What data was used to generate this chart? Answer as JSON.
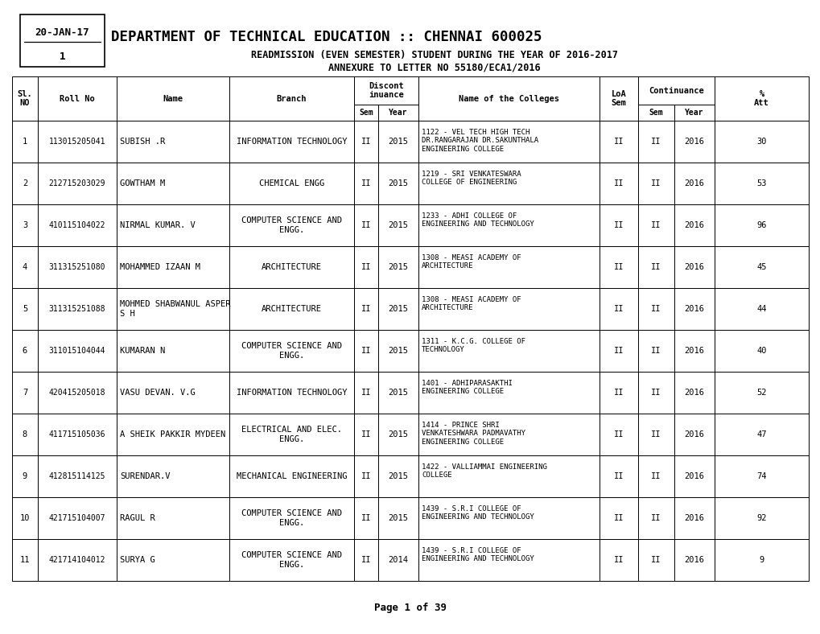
{
  "date": "20-JAN-17",
  "page_num": "1",
  "title1": "DEPARTMENT OF TECHNICAL EDUCATION :: CHENNAI 600025",
  "title2": "READMISSION (EVEN SEMESTER) STUDENT DURING THE YEAR OF 2016-2017",
  "title3": "ANNEXURE TO LETTER NO 55180/ECA1/2016",
  "footer": "Page 1 of 39",
  "rows": [
    {
      "sl": "1",
      "roll": "113015205041",
      "name": "SUBISH .R",
      "branch": "INFORMATION TECHNOLOGY",
      "d_sem": "II",
      "d_year": "2015",
      "college": "1122 - VEL TECH HIGH TECH\nDR.RANGARAJAN DR.SAKUNTHALA\nENGINEERING COLLEGE",
      "loa_sem": "II",
      "c_sem": "II",
      "c_year": "2016",
      "att": "30"
    },
    {
      "sl": "2",
      "roll": "212715203029",
      "name": "GOWTHAM M",
      "branch": "CHEMICAL ENGG",
      "d_sem": "II",
      "d_year": "2015",
      "college": "1219 - SRI VENKATESWARA\nCOLLEGE OF ENGINEERING",
      "loa_sem": "II",
      "c_sem": "II",
      "c_year": "2016",
      "att": "53"
    },
    {
      "sl": "3",
      "roll": "410115104022",
      "name": "NIRMAL KUMAR. V",
      "branch": "COMPUTER SCIENCE AND\nENGG.",
      "d_sem": "II",
      "d_year": "2015",
      "college": "1233 - ADHI COLLEGE OF\nENGINEERING AND TECHNOLOGY",
      "loa_sem": "II",
      "c_sem": "II",
      "c_year": "2016",
      "att": "96"
    },
    {
      "sl": "4",
      "roll": "311315251080",
      "name": "MOHAMMED IZAAN M",
      "branch": "ARCHITECTURE",
      "d_sem": "II",
      "d_year": "2015",
      "college": "1308 - MEASI ACADEMY OF\nARCHITECTURE",
      "loa_sem": "II",
      "c_sem": "II",
      "c_year": "2016",
      "att": "45"
    },
    {
      "sl": "5",
      "roll": "311315251088",
      "name": "MOHMED SHABWANUL ASPER\nS H",
      "branch": "ARCHITECTURE",
      "d_sem": "II",
      "d_year": "2015",
      "college": "1308 - MEASI ACADEMY OF\nARCHITECTURE",
      "loa_sem": "II",
      "c_sem": "II",
      "c_year": "2016",
      "att": "44"
    },
    {
      "sl": "6",
      "roll": "311015104044",
      "name": "KUMARAN N",
      "branch": "COMPUTER SCIENCE AND\nENGG.",
      "d_sem": "II",
      "d_year": "2015",
      "college": "1311 - K.C.G. COLLEGE OF\nTECHNOLOGY",
      "loa_sem": "II",
      "c_sem": "II",
      "c_year": "2016",
      "att": "40"
    },
    {
      "sl": "7",
      "roll": "420415205018",
      "name": "VASU DEVAN. V.G",
      "branch": "INFORMATION TECHNOLOGY",
      "d_sem": "II",
      "d_year": "2015",
      "college": "1401 - ADHIPARASAKTHI\nENGINEERING COLLEGE",
      "loa_sem": "II",
      "c_sem": "II",
      "c_year": "2016",
      "att": "52"
    },
    {
      "sl": "8",
      "roll": "411715105036",
      "name": "A SHEIK PAKKIR MYDEEN",
      "branch": "ELECTRICAL AND ELEC.\nENGG.",
      "d_sem": "II",
      "d_year": "2015",
      "college": "1414 - PRINCE SHRI\nVENKATESHWARA PADMAVATHY\nENGINEERING COLLEGE",
      "loa_sem": "II",
      "c_sem": "II",
      "c_year": "2016",
      "att": "47"
    },
    {
      "sl": "9",
      "roll": "412815114125",
      "name": "SURENDAR.V",
      "branch": "MECHANICAL ENGINEERING",
      "d_sem": "II",
      "d_year": "2015",
      "college": "1422 - VALLIAMMAI ENGINEERING\nCOLLEGE",
      "loa_sem": "II",
      "c_sem": "II",
      "c_year": "2016",
      "att": "74"
    },
    {
      "sl": "10",
      "roll": "421715104007",
      "name": "RAGUL R",
      "branch": "COMPUTER SCIENCE AND\nENGG.",
      "d_sem": "II",
      "d_year": "2015",
      "college": "1439 - S.R.I COLLEGE OF\nENGINEERING AND TECHNOLOGY",
      "loa_sem": "II",
      "c_sem": "II",
      "c_year": "2016",
      "att": "92"
    },
    {
      "sl": "11",
      "roll": "421714104012",
      "name": "SURYA G",
      "branch": "COMPUTER SCIENCE AND\nENGG.",
      "d_sem": "II",
      "d_year": "2014",
      "college": "1439 - S.R.I COLLEGE OF\nENGINEERING AND TECHNOLOGY",
      "loa_sem": "II",
      "c_sem": "II",
      "c_year": "2016",
      "att": "9"
    }
  ],
  "fig_w": 10.2,
  "fig_h": 7.88,
  "dpi": 100,
  "bg_color": "#ffffff"
}
